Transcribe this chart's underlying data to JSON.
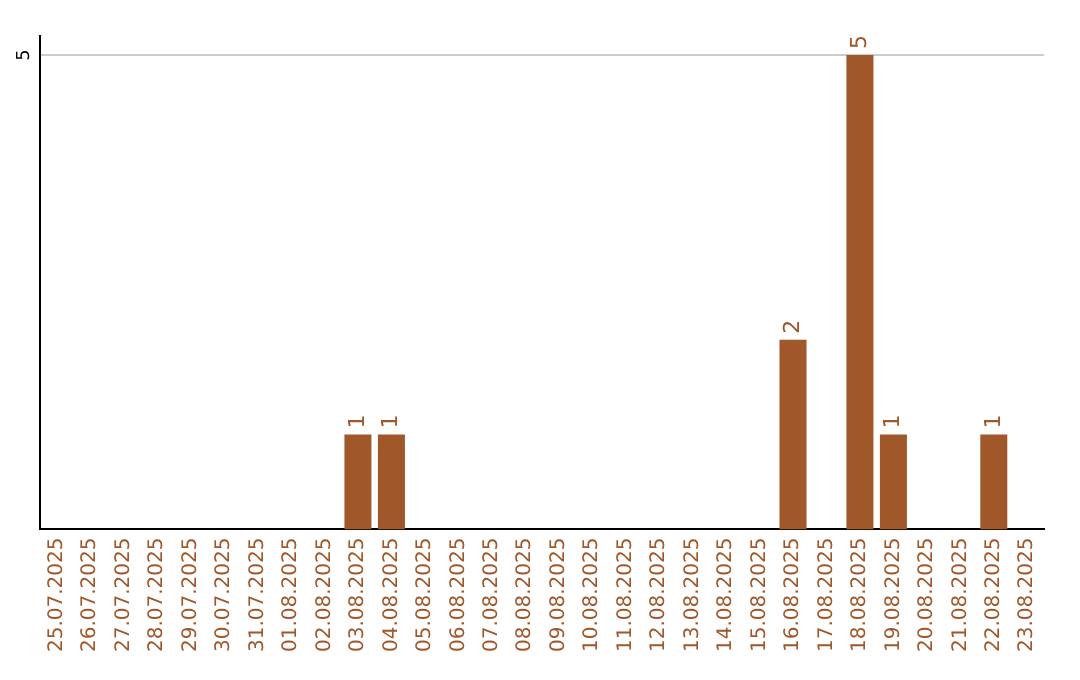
{
  "chart_data": {
    "type": "bar",
    "categories": [
      "25.07.2025",
      "26.07.2025",
      "27.07.2025",
      "28.07.2025",
      "29.07.2025",
      "30.07.2025",
      "31.07.2025",
      "01.08.2025",
      "02.08.2025",
      "03.08.2025",
      "04.08.2025",
      "05.08.2025",
      "06.08.2025",
      "07.08.2025",
      "08.08.2025",
      "09.08.2025",
      "10.08.2025",
      "11.08.2025",
      "12.08.2025",
      "13.08.2025",
      "14.08.2025",
      "15.08.2025",
      "16.08.2025",
      "17.08.2025",
      "18.08.2025",
      "19.08.2025",
      "20.08.2025",
      "21.08.2025",
      "22.08.2025",
      "23.08.2025"
    ],
    "values": [
      0,
      0,
      0,
      0,
      0,
      0,
      0,
      0,
      0,
      1,
      1,
      0,
      0,
      0,
      0,
      0,
      0,
      0,
      0,
      0,
      0,
      0,
      2,
      0,
      5,
      1,
      0,
      0,
      1,
      0
    ],
    "value_labels": [
      null,
      null,
      null,
      null,
      null,
      null,
      null,
      null,
      null,
      "1",
      "1",
      null,
      null,
      null,
      null,
      null,
      null,
      null,
      null,
      null,
      null,
      null,
      "2",
      null,
      "5",
      "1",
      null,
      null,
      "1",
      null
    ],
    "color": "#a0572a",
    "ylim": [
      0,
      5.2
    ],
    "yticks": [
      5
    ],
    "grid": "y",
    "legend": false
  }
}
